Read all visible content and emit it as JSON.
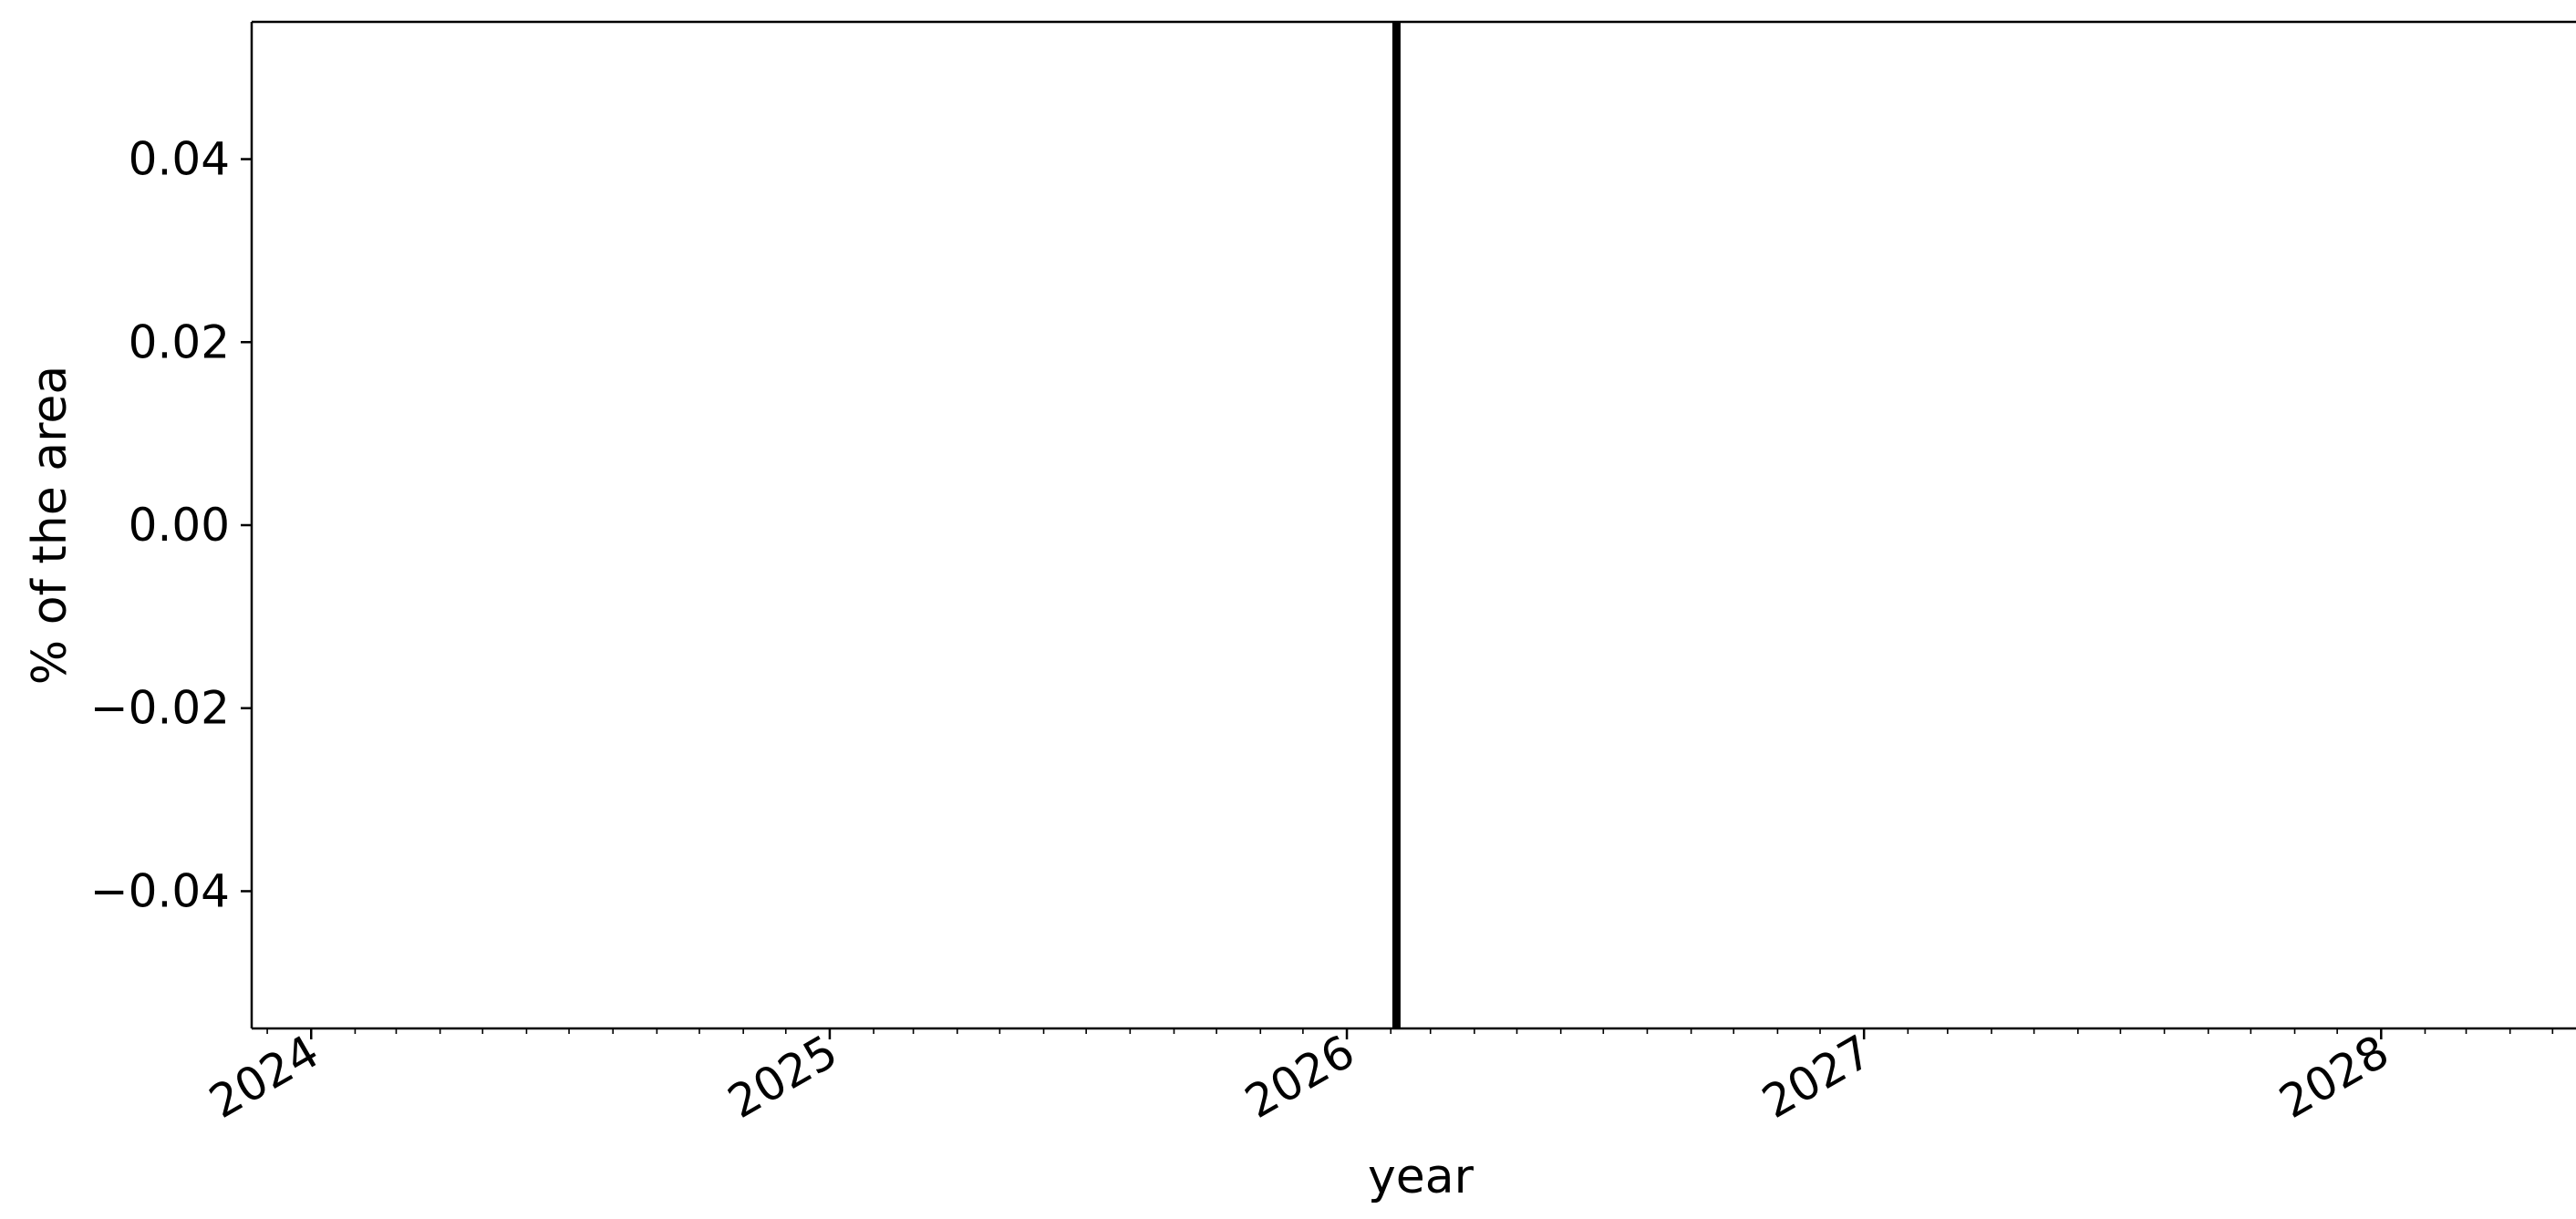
{
  "chart_data": {
    "type": "line",
    "title": "",
    "xlabel": "year",
    "ylabel": "% of the area",
    "x_ticks": [
      "2024",
      "2025",
      "2026",
      "2027",
      "2028"
    ],
    "y_ticks": [
      "0.04",
      "0.02",
      "0.00",
      "−0.02",
      "−0.04"
    ],
    "y_tick_values": [
      0.04,
      0.02,
      0.0,
      -0.02,
      -0.04
    ],
    "xlim": [
      "2023-11-20",
      "2028-06-20"
    ],
    "ylim": [
      -0.055,
      0.055
    ],
    "grid": false,
    "vertical_line": {
      "x": "2026-02-05",
      "color": "#000000"
    },
    "series": []
  }
}
